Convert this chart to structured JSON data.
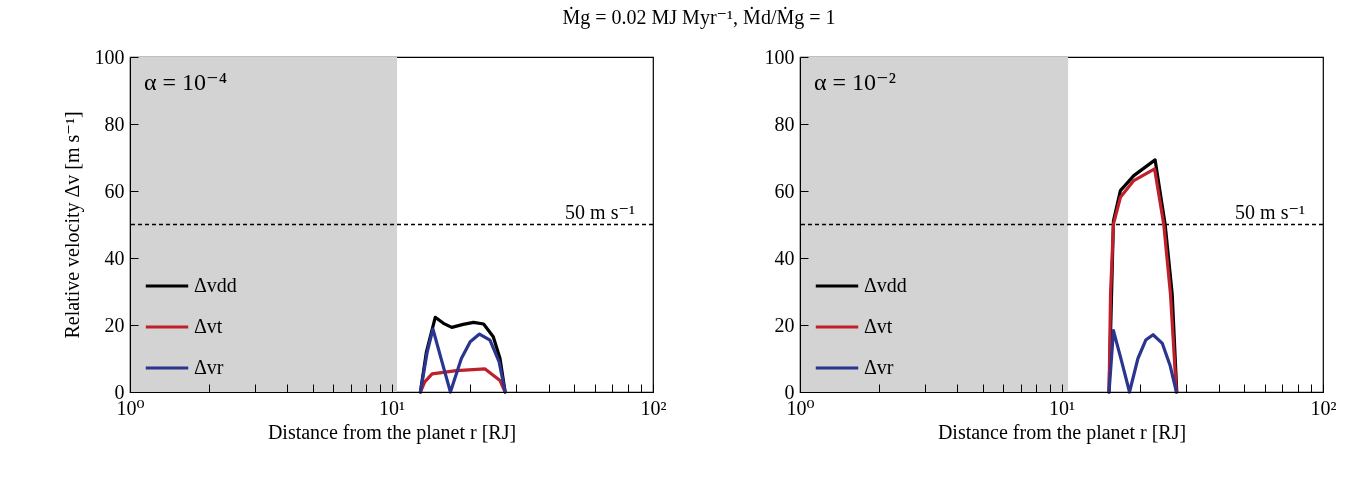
{
  "chart_data": [
    {
      "type": "line",
      "title": "Ṁg = 0.02 MJ Myr⁻¹,  Ṁd/Ṁg = 1",
      "xlabel": "Distance from the planet r [RJ]",
      "ylabel": "Relative velocity Δv [m s⁻¹]",
      "log": "x",
      "xlim": [
        1,
        100
      ],
      "ylim": [
        0,
        100
      ],
      "xticks": [
        {
          "value": 1,
          "label": "10⁰"
        },
        {
          "value": 2,
          "label": null
        },
        {
          "value": 3,
          "label": null
        },
        {
          "value": 4,
          "label": null
        },
        {
          "value": 5,
          "label": null
        },
        {
          "value": 6,
          "label": null
        },
        {
          "value": 7,
          "label": null
        },
        {
          "value": 8,
          "label": null
        },
        {
          "value": 9,
          "label": null
        },
        {
          "value": 10,
          "label": "10¹"
        },
        {
          "value": 20,
          "label": null
        },
        {
          "value": 30,
          "label": null
        },
        {
          "value": 40,
          "label": null
        },
        {
          "value": 50,
          "label": null
        },
        {
          "value": 60,
          "label": null
        },
        {
          "value": 70,
          "label": null
        },
        {
          "value": 80,
          "label": null
        },
        {
          "value": 90,
          "label": null
        },
        {
          "value": 100,
          "label": "10²"
        }
      ],
      "yticks": [
        0,
        20,
        40,
        60,
        80,
        100
      ],
      "grid": false,
      "legend": "bottom left",
      "marker": "none",
      "line_style": "solid",
      "annotations": [
        "α = 10⁻⁴"
      ],
      "bands": [
        {
          "axis": "x",
          "from": 1,
          "to": 10.5,
          "color": "#d3d3d3"
        }
      ],
      "ref_lines": [
        {
          "axis": "y",
          "value": 50,
          "label": "50 m s⁻¹",
          "color": "#000000",
          "line_style": "dashed"
        }
      ],
      "series": [
        {
          "name": "Δvdd",
          "color": "#000000",
          "x": [
            12.9,
            13.6,
            14.7,
            15.8,
            17.0,
            18.8,
            20.6,
            22.5,
            24.5,
            26.0,
            27.2
          ],
          "values": [
            0,
            12,
            22.3,
            20.5,
            19.3,
            20.2,
            20.8,
            20.3,
            16.5,
            10,
            0
          ]
        },
        {
          "name": "Δvt",
          "color": "#c0202a",
          "x": [
            12.9,
            13.4,
            14.3,
            17.7,
            22.8,
            26.0,
            27.2
          ],
          "values": [
            0,
            3,
            5.4,
            6.4,
            6.9,
            3.4,
            0
          ]
        },
        {
          "name": "Δvr",
          "color": "#2a3590",
          "x": [
            12.9,
            13.7,
            14.4,
            15.6,
            16.8,
            18.5,
            20.0,
            21.7,
            23.8,
            25.8,
            27.2
          ],
          "values": [
            0,
            12,
            18.8,
            9,
            0,
            10,
            15,
            17.3,
            15.5,
            9,
            0
          ]
        }
      ]
    },
    {
      "type": "line",
      "xlabel": "Distance from the planet r [RJ]",
      "log": "x",
      "xlim": [
        1,
        100
      ],
      "ylim": [
        0,
        100
      ],
      "xticks": [
        {
          "value": 1,
          "label": "10⁰"
        },
        {
          "value": 2,
          "label": null
        },
        {
          "value": 3,
          "label": null
        },
        {
          "value": 4,
          "label": null
        },
        {
          "value": 5,
          "label": null
        },
        {
          "value": 6,
          "label": null
        },
        {
          "value": 7,
          "label": null
        },
        {
          "value": 8,
          "label": null
        },
        {
          "value": 9,
          "label": null
        },
        {
          "value": 10,
          "label": "10¹"
        },
        {
          "value": 20,
          "label": null
        },
        {
          "value": 30,
          "label": null
        },
        {
          "value": 40,
          "label": null
        },
        {
          "value": 50,
          "label": null
        },
        {
          "value": 60,
          "label": null
        },
        {
          "value": 70,
          "label": null
        },
        {
          "value": 80,
          "label": null
        },
        {
          "value": 90,
          "label": null
        },
        {
          "value": 100,
          "label": "10²"
        }
      ],
      "yticks": [
        0,
        20,
        40,
        60,
        80,
        100
      ],
      "grid": false,
      "legend": "bottom left",
      "marker": "none",
      "line_style": "solid",
      "annotations": [
        "α = 10⁻²"
      ],
      "bands": [
        {
          "axis": "x",
          "from": 1,
          "to": 10.6,
          "color": "#d3d3d3"
        }
      ],
      "ref_lines": [
        {
          "axis": "y",
          "value": 50,
          "label": "50 m s⁻¹",
          "color": "#000000",
          "line_style": "dashed"
        }
      ],
      "series": [
        {
          "name": "Δvdd",
          "color": "#000000",
          "x": [
            15.2,
            15.8,
            16.8,
            18.9,
            22.8,
            24.9,
            26.5,
            27.6
          ],
          "values": [
            0,
            51.1,
            60.1,
            64.6,
            69.3,
            50.1,
            29.3,
            0
          ]
        },
        {
          "name": "Δvt",
          "color": "#c0202a",
          "x": [
            15.2,
            15.4,
            15.8,
            16.8,
            18.9,
            22.7,
            24.6,
            26.1,
            27.5
          ],
          "values": [
            0,
            29.3,
            50.1,
            58.1,
            63.1,
            66.6,
            50.1,
            29.3,
            0
          ]
        },
        {
          "name": "Δvr",
          "color": "#2a3590",
          "x": [
            15.2,
            15.8,
            17.0,
            18.2,
            19.6,
            21.0,
            22.4,
            24.3,
            26.0,
            27.5
          ],
          "values": [
            0,
            18.3,
            9,
            0,
            10,
            15.5,
            17.1,
            14.5,
            8,
            0
          ]
        }
      ]
    }
  ]
}
